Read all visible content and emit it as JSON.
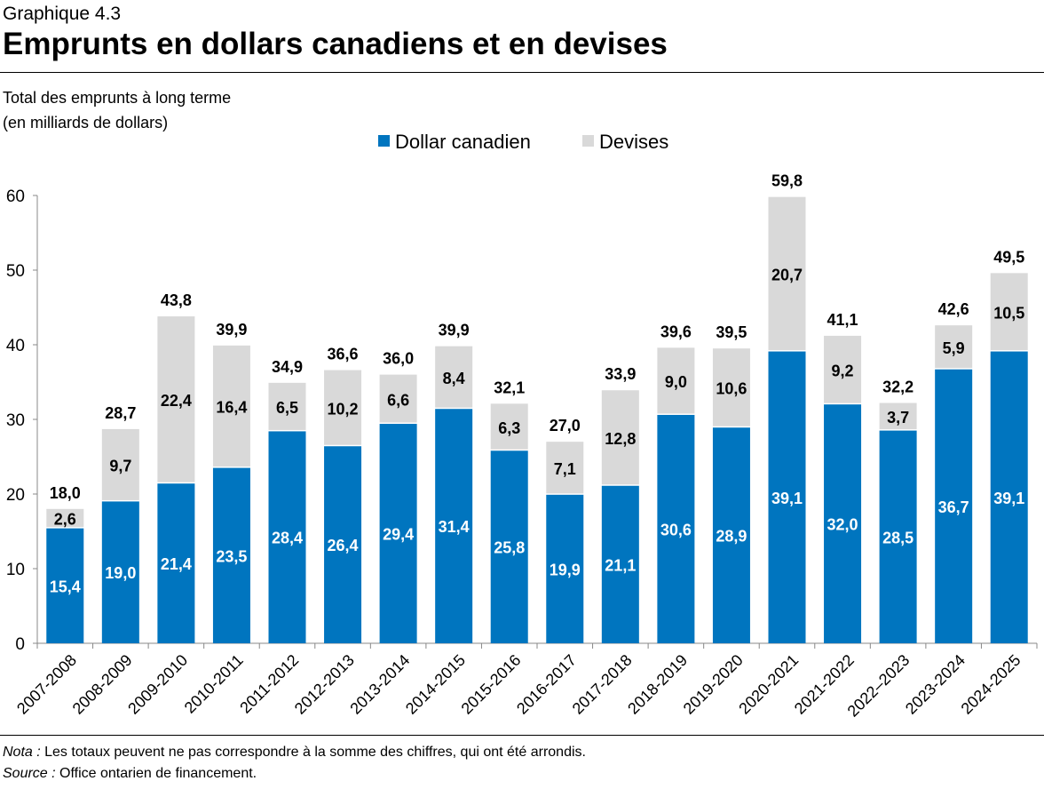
{
  "header": {
    "subtitle": "Graphique 4.3",
    "title": "Emprunts en dollars canadiens et en devises"
  },
  "chart_data": {
    "type": "bar",
    "stacked": true,
    "title": "Emprunts en dollars canadiens et en devises",
    "ylabel_line1": "Total des emprunts à long terme",
    "ylabel_line2": "(en milliards de dollars)",
    "ylim": [
      0,
      60
    ],
    "yticks": [
      0,
      10,
      20,
      30,
      40,
      50,
      60
    ],
    "grid": false,
    "legend_position": "top-center",
    "categories": [
      "2007-2008",
      "2008-2009",
      "2009-2010",
      "2010-2011",
      "2011-2012",
      "2012-2013",
      "2013-2014",
      "2014-2015",
      "2015-2016",
      "2016-2017",
      "2017-2018",
      "2018-2019",
      "2019-2020",
      "2020-2021",
      "2021-2022",
      "2022–2023",
      "2023-2024",
      "2024-2025"
    ],
    "series": [
      {
        "name": "Dollar canadien",
        "color": "#0075BF",
        "values": [
          15.4,
          19.0,
          21.4,
          23.5,
          28.4,
          26.4,
          29.4,
          31.4,
          25.8,
          19.9,
          21.1,
          30.6,
          28.9,
          39.1,
          32.0,
          28.5,
          36.7,
          39.1
        ]
      },
      {
        "name": "Devises",
        "color": "#D9D9D9",
        "values": [
          2.6,
          9.7,
          22.4,
          16.4,
          6.5,
          10.2,
          6.6,
          8.4,
          6.3,
          7.1,
          12.8,
          9.0,
          10.6,
          20.7,
          9.2,
          3.7,
          5.9,
          10.5
        ]
      }
    ],
    "totals": [
      18.0,
      28.7,
      43.8,
      39.9,
      34.9,
      36.6,
      36.0,
      39.9,
      32.1,
      27.0,
      33.9,
      39.6,
      39.5,
      59.8,
      41.1,
      32.2,
      42.6,
      49.5
    ]
  },
  "footer": {
    "note_label": "Nota :",
    "note_text": " Les totaux peuvent ne pas correspondre à la somme des chiffres, qui ont été arrondis.",
    "source_label": "Source :",
    "source_text": " Office ontarien de financement."
  }
}
